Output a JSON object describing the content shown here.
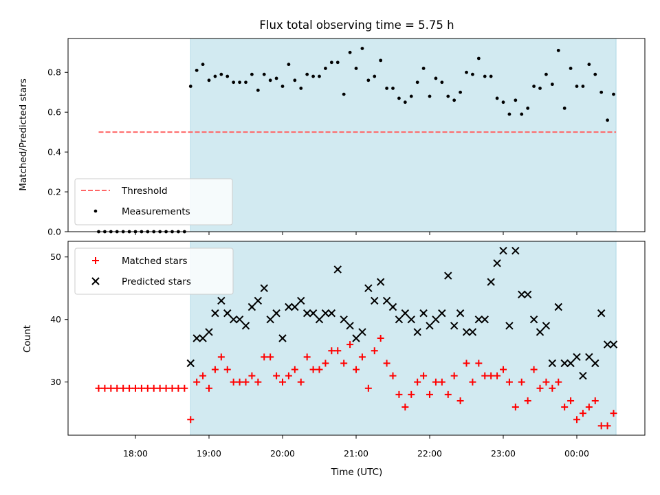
{
  "chart_data": [
    {
      "type": "scatter",
      "title": "Flux total observing time = 5.75 h",
      "xlabel": "",
      "ylabel": "Matched/Predicted stars",
      "x_time_range": [
        "17:15",
        "00:55"
      ],
      "ylim": [
        0,
        0.97
      ],
      "yticks": [
        "0.0",
        "0.2",
        "0.4",
        "0.6",
        "0.8"
      ],
      "ytick_values": [
        0,
        0.2,
        0.4,
        0.6,
        0.8
      ],
      "shaded_region": {
        "start": "18:45",
        "end": "00:32",
        "color": "#add8e6"
      },
      "threshold": {
        "value": 0.5,
        "start": "17:30",
        "end": "00:32",
        "color": "#ff6666"
      },
      "legend": {
        "placement": "lower-left",
        "entries": [
          "Threshold",
          "Measurements"
        ]
      },
      "series": [
        {
          "name": "Measurements",
          "color": "#000000",
          "x": [
            "17:30",
            "17:35",
            "17:40",
            "17:45",
            "17:50",
            "17:55",
            "18:00",
            "18:05",
            "18:10",
            "18:15",
            "18:20",
            "18:25",
            "18:30",
            "18:35",
            "18:40",
            "18:45",
            "18:50",
            "18:55",
            "19:00",
            "19:05",
            "19:10",
            "19:15",
            "19:20",
            "19:25",
            "19:30",
            "19:35",
            "19:40",
            "19:45",
            "19:50",
            "19:55",
            "20:00",
            "20:05",
            "20:10",
            "20:15",
            "20:20",
            "20:25",
            "20:30",
            "20:35",
            "20:40",
            "20:45",
            "20:50",
            "20:55",
            "21:00",
            "21:05",
            "21:10",
            "21:15",
            "21:20",
            "21:25",
            "21:30",
            "21:35",
            "21:40",
            "21:45",
            "21:50",
            "21:55",
            "22:00",
            "22:05",
            "22:10",
            "22:15",
            "22:20",
            "22:25",
            "22:30",
            "22:35",
            "22:40",
            "22:45",
            "22:50",
            "22:55",
            "23:00",
            "23:05",
            "23:10",
            "23:15",
            "23:20",
            "23:25",
            "23:30",
            "23:35",
            "23:40",
            "23:45",
            "23:50",
            "23:55",
            "00:00",
            "00:05",
            "00:10",
            "00:15",
            "00:20",
            "00:25",
            "00:30"
          ],
          "y": [
            0,
            0,
            0,
            0,
            0,
            0,
            0,
            0,
            0,
            0,
            0,
            0,
            0,
            0,
            0,
            0.73,
            0.81,
            0.84,
            0.76,
            0.78,
            0.79,
            0.78,
            0.75,
            0.75,
            0.75,
            0.79,
            0.71,
            0.79,
            0.76,
            0.77,
            0.73,
            0.84,
            0.76,
            0.72,
            0.79,
            0.78,
            0.78,
            0.82,
            0.85,
            0.85,
            0.69,
            0.9,
            0.82,
            0.92,
            0.76,
            0.78,
            0.86,
            0.72,
            0.72,
            0.67,
            0.65,
            0.68,
            0.75,
            0.82,
            0.68,
            0.77,
            0.75,
            0.68,
            0.66,
            0.7,
            0.8,
            0.79,
            0.87,
            0.78,
            0.78,
            0.67,
            0.65,
            0.59,
            0.66,
            0.59,
            0.62,
            0.73,
            0.72,
            0.79,
            0.74,
            0.91,
            0.62,
            0.82,
            0.73,
            0.73,
            0.84,
            0.79,
            0.7,
            0.56,
            0.69
          ]
        }
      ]
    },
    {
      "type": "scatter",
      "title": "",
      "xlabel": "Time (UTC)",
      "ylabel": "Count",
      "x_time_range": [
        "17:15",
        "00:55"
      ],
      "xticks": [
        "18:00",
        "19:00",
        "20:00",
        "21:00",
        "22:00",
        "23:00",
        "00:00"
      ],
      "ylim": [
        21.5,
        52.5
      ],
      "yticks": [
        "30",
        "40",
        "50"
      ],
      "ytick_values": [
        30,
        40,
        50
      ],
      "shaded_region": {
        "start": "18:45",
        "end": "00:32",
        "color": "#add8e6"
      },
      "legend": {
        "placement": "top-left",
        "entries": [
          "Matched stars",
          "Predicted stars"
        ]
      },
      "series": [
        {
          "name": "Matched stars",
          "marker": "+",
          "color": "#ff0000",
          "x": [
            "17:30",
            "17:35",
            "17:40",
            "17:45",
            "17:50",
            "17:55",
            "18:00",
            "18:05",
            "18:10",
            "18:15",
            "18:20",
            "18:25",
            "18:30",
            "18:35",
            "18:40",
            "18:45",
            "18:50",
            "18:55",
            "19:00",
            "19:05",
            "19:10",
            "19:15",
            "19:20",
            "19:25",
            "19:30",
            "19:35",
            "19:40",
            "19:45",
            "19:50",
            "19:55",
            "20:00",
            "20:05",
            "20:10",
            "20:15",
            "20:20",
            "20:25",
            "20:30",
            "20:35",
            "20:40",
            "20:45",
            "20:50",
            "20:55",
            "21:00",
            "21:05",
            "21:10",
            "21:15",
            "21:20",
            "21:25",
            "21:30",
            "21:35",
            "21:40",
            "21:45",
            "21:50",
            "21:55",
            "22:00",
            "22:05",
            "22:10",
            "22:15",
            "22:20",
            "22:25",
            "22:30",
            "22:35",
            "22:40",
            "22:45",
            "22:50",
            "22:55",
            "23:00",
            "23:05",
            "23:10",
            "23:15",
            "23:20",
            "23:25",
            "23:30",
            "23:35",
            "23:40",
            "23:45",
            "23:50",
            "23:55",
            "00:00",
            "00:05",
            "00:10",
            "00:15",
            "00:20",
            "00:25",
            "00:30"
          ],
          "y": [
            29,
            29,
            29,
            29,
            29,
            29,
            29,
            29,
            29,
            29,
            29,
            29,
            29,
            29,
            29,
            24,
            30,
            31,
            29,
            32,
            34,
            32,
            30,
            30,
            30,
            31,
            30,
            34,
            34,
            31,
            30,
            31,
            32,
            30,
            34,
            32,
            32,
            33,
            35,
            35,
            33,
            36,
            32,
            34,
            29,
            35,
            37,
            33,
            31,
            28,
            26,
            28,
            30,
            31,
            28,
            30,
            30,
            28,
            31,
            27,
            33,
            30,
            33,
            31,
            31,
            31,
            32,
            30,
            26,
            30,
            27,
            32,
            29,
            30,
            29,
            30,
            26,
            27,
            24,
            25,
            26,
            27,
            23,
            23,
            25
          ]
        },
        {
          "name": "Predicted stars",
          "marker": "x",
          "color": "#000000",
          "x": [
            "18:45",
            "18:50",
            "18:55",
            "19:00",
            "19:05",
            "19:10",
            "19:15",
            "19:20",
            "19:25",
            "19:30",
            "19:35",
            "19:40",
            "19:45",
            "19:50",
            "19:55",
            "20:00",
            "20:05",
            "20:10",
            "20:15",
            "20:20",
            "20:25",
            "20:30",
            "20:35",
            "20:40",
            "20:45",
            "20:50",
            "20:55",
            "21:00",
            "21:05",
            "21:10",
            "21:15",
            "21:20",
            "21:25",
            "21:30",
            "21:35",
            "21:40",
            "21:45",
            "21:50",
            "21:55",
            "22:00",
            "22:05",
            "22:10",
            "22:15",
            "22:20",
            "22:25",
            "22:30",
            "22:35",
            "22:40",
            "22:45",
            "22:50",
            "22:55",
            "23:00",
            "23:05",
            "23:10",
            "23:15",
            "23:20",
            "23:25",
            "23:30",
            "23:35",
            "23:40",
            "23:45",
            "23:50",
            "23:55",
            "00:00",
            "00:05",
            "00:10",
            "00:15",
            "00:20",
            "00:25",
            "00:30"
          ],
          "y": [
            33,
            37,
            37,
            38,
            41,
            43,
            41,
            40,
            40,
            39,
            42,
            43,
            45,
            40,
            41,
            37,
            42,
            42,
            43,
            41,
            41,
            40,
            41,
            41,
            48,
            40,
            39,
            37,
            38,
            45,
            43,
            46,
            43,
            42,
            40,
            41,
            40,
            38,
            41,
            39,
            40,
            41,
            47,
            39,
            41,
            38,
            38,
            40,
            40,
            46,
            49,
            51,
            39,
            51,
            44,
            44,
            40,
            38,
            39,
            33,
            42,
            33,
            33,
            34,
            31,
            34,
            33,
            41,
            36,
            36
          ]
        }
      ]
    }
  ]
}
